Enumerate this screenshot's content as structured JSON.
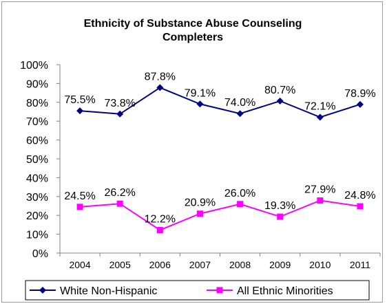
{
  "chart_data": {
    "type": "line",
    "title": "Ethnicity of Substance Abuse Counseling Completers",
    "title_lines": [
      "Ethnicity of Substance Abuse Counseling",
      "Completers"
    ],
    "xlabel": "",
    "ylabel": "",
    "categories": [
      "2004",
      "2005",
      "2006",
      "2007",
      "2008",
      "2009",
      "2010",
      "2011"
    ],
    "ylim": [
      0,
      100
    ],
    "yticks": [
      "0%",
      "10%",
      "20%",
      "30%",
      "40%",
      "50%",
      "60%",
      "70%",
      "80%",
      "90%",
      "100%"
    ],
    "grid": false,
    "legend_position": "bottom",
    "series": [
      {
        "name": "White Non-Hispanic",
        "color": "#000080",
        "marker": "diamond",
        "values": [
          75.5,
          73.8,
          87.8,
          79.1,
          74.0,
          80.7,
          72.1,
          78.9
        ],
        "labels": [
          "75.5%",
          "73.8%",
          "87.8%",
          "79.1%",
          "74.0%",
          "80.7%",
          "72.1%",
          "78.9%"
        ]
      },
      {
        "name": "All Ethnic Minorities",
        "color": "#ff00ff",
        "marker": "square",
        "values": [
          24.5,
          26.2,
          12.2,
          20.9,
          26.0,
          19.3,
          27.9,
          24.8
        ],
        "labels": [
          "24.5%",
          "26.2%",
          "12.2%",
          "20.9%",
          "26.0%",
          "19.3%",
          "27.9%",
          "24.8%"
        ]
      }
    ]
  }
}
